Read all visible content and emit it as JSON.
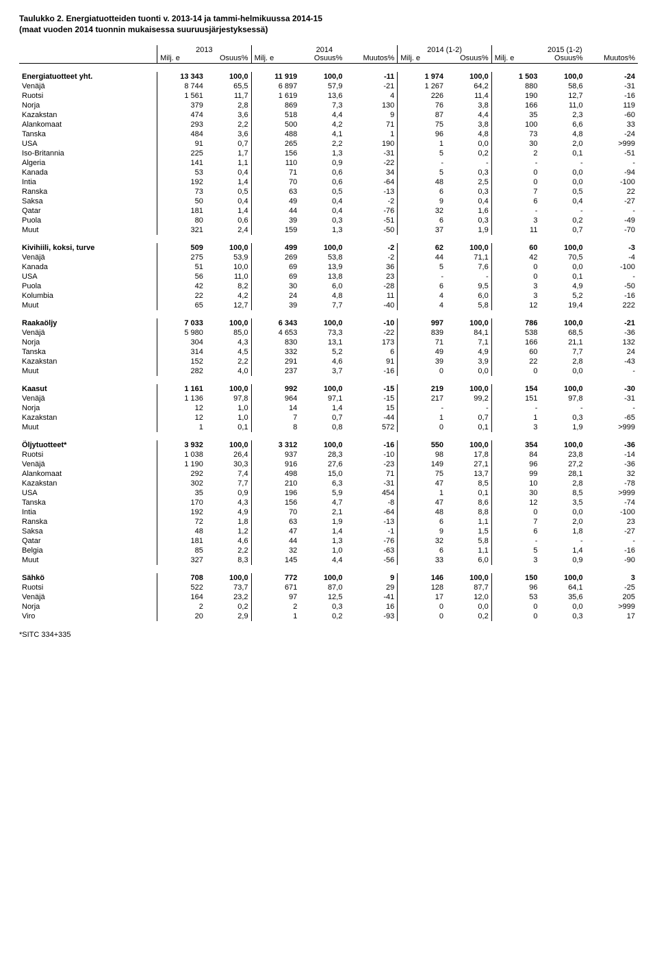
{
  "title": "Taulukko 2. Energiatuotteiden tuonti v. 2013-14 ja tammi-helmikuussa 2014-15",
  "subtitle": "(maat vuoden 2014 tuonnin mukaisessa suuruusjärjestyksessä)",
  "footnote": "*SITC 334+335",
  "columns": {
    "year_headers": [
      "2013",
      "2014",
      "2014 (1-2)",
      "2015 (1-2)"
    ],
    "sub_headers": {
      "milj_e": "Milj. e",
      "osuus": "Osuus%",
      "muutos": "Muutos%"
    }
  },
  "sections": [
    {
      "header": "Energiatuotteet yht.",
      "header_row": [
        "13 343",
        "100,0",
        "11 919",
        "100,0",
        "-11",
        "1 974",
        "100,0",
        "1 503",
        "100,0",
        "-24"
      ],
      "rows": [
        [
          "Venäjä",
          "8 744",
          "65,5",
          "6 897",
          "57,9",
          "-21",
          "1 267",
          "64,2",
          "880",
          "58,6",
          "-31"
        ],
        [
          "Ruotsi",
          "1 561",
          "11,7",
          "1 619",
          "13,6",
          "4",
          "226",
          "11,4",
          "190",
          "12,7",
          "-16"
        ],
        [
          "Norja",
          "379",
          "2,8",
          "869",
          "7,3",
          "130",
          "76",
          "3,8",
          "166",
          "11,0",
          "119"
        ],
        [
          "Kazakstan",
          "474",
          "3,6",
          "518",
          "4,4",
          "9",
          "87",
          "4,4",
          "35",
          "2,3",
          "-60"
        ],
        [
          "Alankomaat",
          "293",
          "2,2",
          "500",
          "4,2",
          "71",
          "75",
          "3,8",
          "100",
          "6,6",
          "33"
        ],
        [
          "Tanska",
          "484",
          "3,6",
          "488",
          "4,1",
          "1",
          "96",
          "4,8",
          "73",
          "4,8",
          "-24"
        ],
        [
          "USA",
          "91",
          "0,7",
          "265",
          "2,2",
          "190",
          "1",
          "0,0",
          "30",
          "2,0",
          ">999"
        ],
        [
          "Iso-Britannia",
          "225",
          "1,7",
          "156",
          "1,3",
          "-31",
          "5",
          "0,2",
          "2",
          "0,1",
          "-51"
        ],
        [
          "Algeria",
          "141",
          "1,1",
          "110",
          "0,9",
          "-22",
          "-",
          "-",
          "-",
          "-",
          "-"
        ],
        [
          "Kanada",
          "53",
          "0,4",
          "71",
          "0,6",
          "34",
          "5",
          "0,3",
          "0",
          "0,0",
          "-94"
        ],
        [
          "Intia",
          "192",
          "1,4",
          "70",
          "0,6",
          "-64",
          "48",
          "2,5",
          "0",
          "0,0",
          "-100"
        ],
        [
          "Ranska",
          "73",
          "0,5",
          "63",
          "0,5",
          "-13",
          "6",
          "0,3",
          "7",
          "0,5",
          "22"
        ],
        [
          "Saksa",
          "50",
          "0,4",
          "49",
          "0,4",
          "-2",
          "9",
          "0,4",
          "6",
          "0,4",
          "-27"
        ],
        [
          "Qatar",
          "181",
          "1,4",
          "44",
          "0,4",
          "-76",
          "32",
          "1,6",
          "-",
          "-",
          "-"
        ],
        [
          "Puola",
          "80",
          "0,6",
          "39",
          "0,3",
          "-51",
          "6",
          "0,3",
          "3",
          "0,2",
          "-49"
        ],
        [
          "Muut",
          "321",
          "2,4",
          "159",
          "1,3",
          "-50",
          "37",
          "1,9",
          "11",
          "0,7",
          "-70"
        ]
      ]
    },
    {
      "header": "Kivihiili, koksi, turve",
      "header_row": [
        "509",
        "100,0",
        "499",
        "100,0",
        "-2",
        "62",
        "100,0",
        "60",
        "100,0",
        "-3"
      ],
      "rows": [
        [
          "Venäjä",
          "275",
          "53,9",
          "269",
          "53,8",
          "-2",
          "44",
          "71,1",
          "42",
          "70,5",
          "-4"
        ],
        [
          "Kanada",
          "51",
          "10,0",
          "69",
          "13,9",
          "36",
          "5",
          "7,6",
          "0",
          "0,0",
          "-100"
        ],
        [
          "USA",
          "56",
          "11,0",
          "69",
          "13,8",
          "23",
          "-",
          "-",
          "0",
          "0,1",
          "-"
        ],
        [
          "Puola",
          "42",
          "8,2",
          "30",
          "6,0",
          "-28",
          "6",
          "9,5",
          "3",
          "4,9",
          "-50"
        ],
        [
          "Kolumbia",
          "22",
          "4,2",
          "24",
          "4,8",
          "11",
          "4",
          "6,0",
          "3",
          "5,2",
          "-16"
        ],
        [
          "Muut",
          "65",
          "12,7",
          "39",
          "7,7",
          "-40",
          "4",
          "5,8",
          "12",
          "19,4",
          "222"
        ]
      ]
    },
    {
      "header": "Raakaöljy",
      "header_row": [
        "7 033",
        "100,0",
        "6 343",
        "100,0",
        "-10",
        "997",
        "100,0",
        "786",
        "100,0",
        "-21"
      ],
      "rows": [
        [
          "Venäjä",
          "5 980",
          "85,0",
          "4 653",
          "73,3",
          "-22",
          "839",
          "84,1",
          "538",
          "68,5",
          "-36"
        ],
        [
          "Norja",
          "304",
          "4,3",
          "830",
          "13,1",
          "173",
          "71",
          "7,1",
          "166",
          "21,1",
          "132"
        ],
        [
          "Tanska",
          "314",
          "4,5",
          "332",
          "5,2",
          "6",
          "49",
          "4,9",
          "60",
          "7,7",
          "24"
        ],
        [
          "Kazakstan",
          "152",
          "2,2",
          "291",
          "4,6",
          "91",
          "39",
          "3,9",
          "22",
          "2,8",
          "-43"
        ],
        [
          "Muut",
          "282",
          "4,0",
          "237",
          "3,7",
          "-16",
          "0",
          "0,0",
          "0",
          "0,0",
          "-"
        ]
      ]
    },
    {
      "header": "Kaasut",
      "header_row": [
        "1 161",
        "100,0",
        "992",
        "100,0",
        "-15",
        "219",
        "100,0",
        "154",
        "100,0",
        "-30"
      ],
      "rows": [
        [
          "Venäjä",
          "1 136",
          "97,8",
          "964",
          "97,1",
          "-15",
          "217",
          "99,2",
          "151",
          "97,8",
          "-31"
        ],
        [
          "Norja",
          "12",
          "1,0",
          "14",
          "1,4",
          "15",
          "-",
          "-",
          "-",
          "-",
          "-"
        ],
        [
          "Kazakstan",
          "12",
          "1,0",
          "7",
          "0,7",
          "-44",
          "1",
          "0,7",
          "1",
          "0,3",
          "-65"
        ],
        [
          "Muut",
          "1",
          "0,1",
          "8",
          "0,8",
          "572",
          "0",
          "0,1",
          "3",
          "1,9",
          ">999"
        ]
      ]
    },
    {
      "header": "Öljytuotteet*",
      "header_row": [
        "3 932",
        "100,0",
        "3 312",
        "100,0",
        "-16",
        "550",
        "100,0",
        "354",
        "100,0",
        "-36"
      ],
      "rows": [
        [
          "Ruotsi",
          "1 038",
          "26,4",
          "937",
          "28,3",
          "-10",
          "98",
          "17,8",
          "84",
          "23,8",
          "-14"
        ],
        [
          "Venäjä",
          "1 190",
          "30,3",
          "916",
          "27,6",
          "-23",
          "149",
          "27,1",
          "96",
          "27,2",
          "-36"
        ],
        [
          "Alankomaat",
          "292",
          "7,4",
          "498",
          "15,0",
          "71",
          "75",
          "13,7",
          "99",
          "28,1",
          "32"
        ],
        [
          "Kazakstan",
          "302",
          "7,7",
          "210",
          "6,3",
          "-31",
          "47",
          "8,5",
          "10",
          "2,8",
          "-78"
        ],
        [
          "USA",
          "35",
          "0,9",
          "196",
          "5,9",
          "454",
          "1",
          "0,1",
          "30",
          "8,5",
          ">999"
        ],
        [
          "Tanska",
          "170",
          "4,3",
          "156",
          "4,7",
          "-8",
          "47",
          "8,6",
          "12",
          "3,5",
          "-74"
        ],
        [
          "Intia",
          "192",
          "4,9",
          "70",
          "2,1",
          "-64",
          "48",
          "8,8",
          "0",
          "0,0",
          "-100"
        ],
        [
          "Ranska",
          "72",
          "1,8",
          "63",
          "1,9",
          "-13",
          "6",
          "1,1",
          "7",
          "2,0",
          "23"
        ],
        [
          "Saksa",
          "48",
          "1,2",
          "47",
          "1,4",
          "-1",
          "9",
          "1,5",
          "6",
          "1,8",
          "-27"
        ],
        [
          "Qatar",
          "181",
          "4,6",
          "44",
          "1,3",
          "-76",
          "32",
          "5,8",
          "-",
          "-",
          "-"
        ],
        [
          "Belgia",
          "85",
          "2,2",
          "32",
          "1,0",
          "-63",
          "6",
          "1,1",
          "5",
          "1,4",
          "-16"
        ],
        [
          "Muut",
          "327",
          "8,3",
          "145",
          "4,4",
          "-56",
          "33",
          "6,0",
          "3",
          "0,9",
          "-90"
        ]
      ]
    },
    {
      "header": "Sähkö",
      "header_row": [
        "708",
        "100,0",
        "772",
        "100,0",
        "9",
        "146",
        "100,0",
        "150",
        "100,0",
        "3"
      ],
      "rows": [
        [
          "Ruotsi",
          "522",
          "73,7",
          "671",
          "87,0",
          "29",
          "128",
          "87,7",
          "96",
          "64,1",
          "-25"
        ],
        [
          "Venäjä",
          "164",
          "23,2",
          "97",
          "12,5",
          "-41",
          "17",
          "12,0",
          "53",
          "35,6",
          "205"
        ],
        [
          "Norja",
          "2",
          "0,2",
          "2",
          "0,3",
          "16",
          "0",
          "0,0",
          "0",
          "0,0",
          ">999"
        ],
        [
          "Viro",
          "20",
          "2,9",
          "1",
          "0,2",
          "-93",
          "0",
          "0,2",
          "0",
          "0,3",
          "17"
        ]
      ]
    }
  ]
}
